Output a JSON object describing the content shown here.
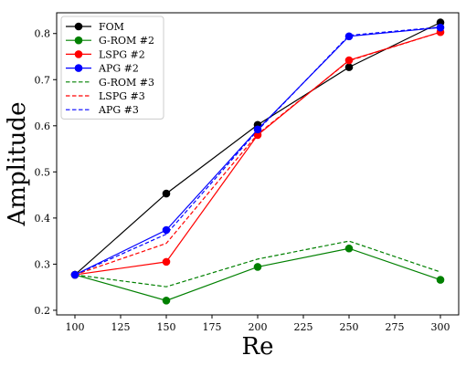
{
  "chart_data": {
    "type": "line",
    "xlabel": "Re",
    "ylabel": "Amplitude",
    "x": [
      100,
      150,
      200,
      250,
      300
    ],
    "xlim": [
      90,
      310
    ],
    "ylim": [
      0.19,
      0.845
    ],
    "xticks": [
      "100",
      "125",
      "150",
      "175",
      "200",
      "225",
      "250",
      "275",
      "300"
    ],
    "yticks": [
      "0.2",
      "0.3",
      "0.4",
      "0.5",
      "0.6",
      "0.7",
      "0.8"
    ],
    "grid": false,
    "legend_position": "top-left",
    "series": [
      {
        "name": "FOM",
        "color": "#000000",
        "style": "solid",
        "marker": true,
        "values": [
          0.277,
          0.453,
          0.602,
          0.727,
          0.824
        ]
      },
      {
        "name": "G-ROM #2",
        "color": "#008000",
        "style": "solid",
        "marker": true,
        "values": [
          0.277,
          0.221,
          0.294,
          0.334,
          0.266
        ]
      },
      {
        "name": "LSPG #2",
        "color": "#ff0000",
        "style": "solid",
        "marker": true,
        "values": [
          0.277,
          0.305,
          0.58,
          0.742,
          0.803
        ]
      },
      {
        "name": "APG #2",
        "color": "#0000ff",
        "style": "solid",
        "marker": true,
        "values": [
          0.277,
          0.374,
          0.592,
          0.794,
          0.813
        ]
      },
      {
        "name": "G-ROM #3",
        "color": "#008000",
        "style": "dashed",
        "marker": false,
        "values": [
          0.277,
          0.251,
          0.311,
          0.35,
          0.283
        ]
      },
      {
        "name": "LSPG #3",
        "color": "#ff0000",
        "style": "dashed",
        "marker": false,
        "values": [
          0.277,
          0.345,
          0.582,
          0.741,
          0.803
        ]
      },
      {
        "name": "APG #3",
        "color": "#0000ff",
        "style": "dashed",
        "marker": false,
        "values": [
          0.277,
          0.365,
          0.59,
          0.796,
          0.814
        ]
      }
    ]
  }
}
